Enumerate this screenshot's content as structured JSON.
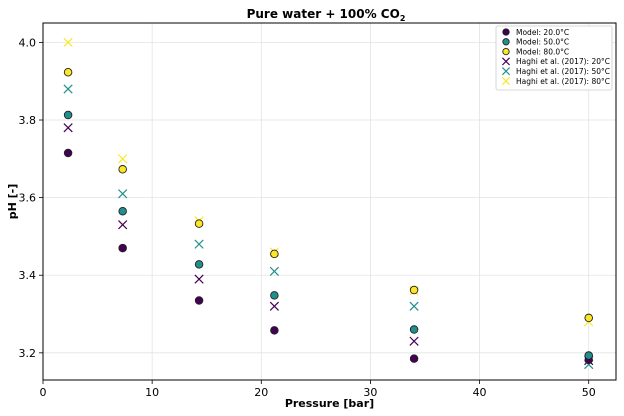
{
  "chart_data": {
    "type": "scatter",
    "title_main": "Pure water + 100% CO",
    "title_sub": "2",
    "xlabel": "Pressure [bar]",
    "ylabel": "pH [-]",
    "xlim": [
      0,
      52.5
    ],
    "ylim": [
      3.13,
      4.05
    ],
    "xticks": [
      0,
      10,
      20,
      30,
      40,
      50
    ],
    "yticks": [
      3.2,
      3.4,
      3.6,
      3.8,
      4.0
    ],
    "ytick_labels": [
      "3.2",
      "3.4",
      "3.6",
      "3.8",
      "4.0"
    ],
    "grid": true,
    "legend_position": "top-right",
    "series": [
      {
        "name": "Model: 20.0°C",
        "marker": "circle",
        "color": "#440154",
        "x": [
          2.3,
          7.3,
          14.3,
          21.2,
          34.0,
          50.0
        ],
        "y": [
          3.715,
          3.47,
          3.335,
          3.258,
          3.185,
          3.182
        ]
      },
      {
        "name": "Model: 50.0°C",
        "marker": "circle",
        "color": "#21908d",
        "x": [
          2.3,
          7.3,
          14.3,
          21.2,
          34.0,
          50.0
        ],
        "y": [
          3.813,
          3.565,
          3.428,
          3.348,
          3.26,
          3.193
        ]
      },
      {
        "name": "Model: 80.0°C",
        "marker": "circle",
        "color": "#fde725",
        "x": [
          2.3,
          7.3,
          14.3,
          21.2,
          34.0,
          50.0
        ],
        "y": [
          3.923,
          3.673,
          3.533,
          3.455,
          3.362,
          3.29
        ]
      },
      {
        "name": "Haghi et al. (2017): 20°C",
        "marker": "x",
        "color": "#440154",
        "x": [
          2.3,
          7.3,
          14.3,
          21.2,
          34.0,
          50.0
        ],
        "y": [
          3.78,
          3.53,
          3.39,
          3.32,
          3.23,
          3.18
        ]
      },
      {
        "name": "Haghi et al. (2017): 50°C",
        "marker": "x",
        "color": "#21908d",
        "x": [
          2.3,
          7.3,
          14.3,
          21.2,
          34.0,
          50.0
        ],
        "y": [
          3.88,
          3.61,
          3.48,
          3.41,
          3.32,
          3.17
        ]
      },
      {
        "name": "Haghi et al. (2017): 80°C",
        "marker": "x",
        "color": "#fde725",
        "x": [
          2.3,
          7.3,
          14.3,
          21.2,
          34.0,
          50.0
        ],
        "y": [
          4.0,
          3.7,
          3.54,
          3.46,
          3.36,
          3.28
        ]
      }
    ]
  }
}
